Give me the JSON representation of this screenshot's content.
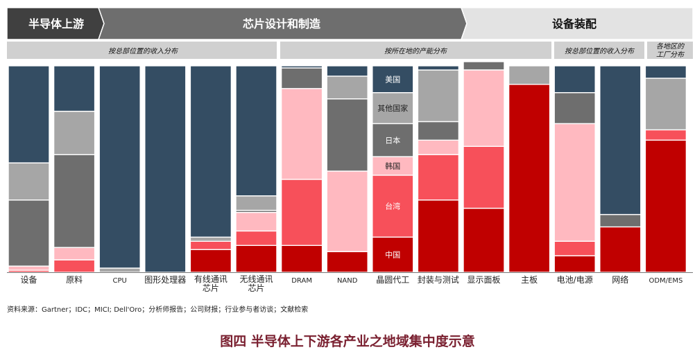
{
  "colors": {
    "美国": "#344d63",
    "其他国家": "#a6a6a6",
    "日本": "#6e6e6e",
    "韩国": "#ffb9c0",
    "台湾": "#f7505a",
    "中国": "#c00000",
    "header_dark": "#404040",
    "header_mid": "#6e6e6e",
    "header_light": "#e3e3e3",
    "band": "#d0d0d0"
  },
  "header": {
    "stages": [
      "半导体上游",
      "芯片设计和制造",
      "设备装配"
    ]
  },
  "bands": [
    "按总部位置的收入分布",
    "按所在地的产能分布",
    "按总部位置的收入分布",
    "各地区的工厂分布"
  ],
  "chart_data": {
    "type": "bar",
    "stacked": true,
    "normalized": true,
    "ylim": [
      0,
      100
    ],
    "categories": [
      "设备",
      "原料",
      "CPU",
      "图形处理器",
      "有线通讯芯片",
      "无线通讯芯片",
      "DRAM",
      "NAND",
      "晶圆代工",
      "封装与测试",
      "显示面板",
      "主板",
      "电池/电源",
      "网络",
      "ODM/EMS"
    ],
    "segment_labels": [
      "中国",
      "台湾",
      "韩国",
      "日本",
      "其他国家",
      "美国"
    ],
    "series": [
      {
        "name": "中国",
        "values": [
          0,
          0,
          0,
          0,
          11,
          13,
          13,
          10,
          17,
          35,
          31,
          91,
          8,
          22,
          64
        ]
      },
      {
        "name": "台湾",
        "values": [
          1,
          6,
          0,
          0,
          4,
          7,
          32,
          0,
          30,
          22,
          30,
          0,
          7,
          0,
          5
        ]
      },
      {
        "name": "韩国",
        "values": [
          2,
          6,
          0,
          0,
          0,
          9,
          44,
          39,
          9,
          7,
          37,
          0,
          57,
          0,
          0
        ]
      },
      {
        "name": "日本",
        "values": [
          32,
          45,
          0,
          0,
          0,
          1,
          10,
          35,
          16,
          9,
          4,
          0,
          15,
          6,
          0
        ]
      },
      {
        "name": "其他国家",
        "values": [
          18,
          21,
          2,
          0,
          2,
          7,
          0,
          11,
          15,
          25,
          0,
          9,
          0,
          0,
          25
        ]
      },
      {
        "name": "美国",
        "values": [
          47,
          22,
          98,
          100,
          83,
          63,
          1,
          5,
          13,
          2,
          0,
          0,
          13,
          72,
          6
        ]
      }
    ]
  },
  "source": "资料来源：Gartner；IDC；MICI;  Dell'Oro；分析师报告；公司财报；行业参与者访谈；文献检索",
  "title": "图四 半导体上下游各产业之地域集中度示意"
}
